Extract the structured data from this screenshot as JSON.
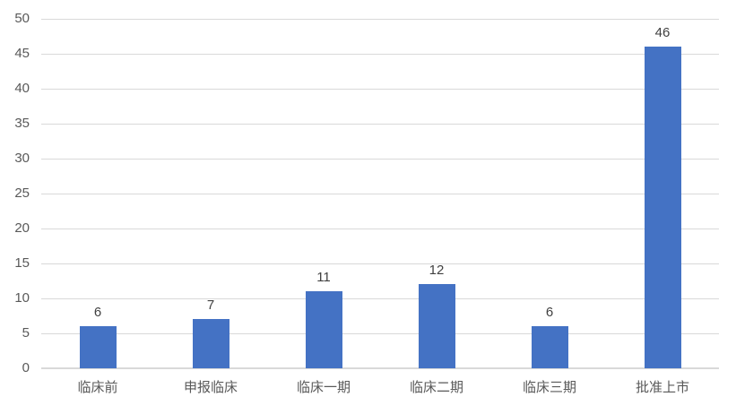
{
  "chart_data": {
    "type": "bar",
    "categories": [
      "临床前",
      "申报临床",
      "临床一期",
      "临床二期",
      "临床三期",
      "批准上市"
    ],
    "values": [
      6,
      7,
      11,
      12,
      6,
      46
    ],
    "data_labels": [
      "6",
      "7",
      "11",
      "12",
      "6",
      "46"
    ],
    "title": "",
    "xlabel": "",
    "ylabel": "",
    "ylim": [
      0,
      50
    ],
    "yticks": [
      0,
      5,
      10,
      15,
      20,
      25,
      30,
      35,
      40,
      45,
      50
    ],
    "grid": true,
    "legend_position": "none",
    "colors": {
      "bar": "#4472c4",
      "gridline": "#d9d9d9",
      "axis_text": "#595959",
      "data_label_text": "#404040",
      "background": "#ffffff"
    }
  }
}
